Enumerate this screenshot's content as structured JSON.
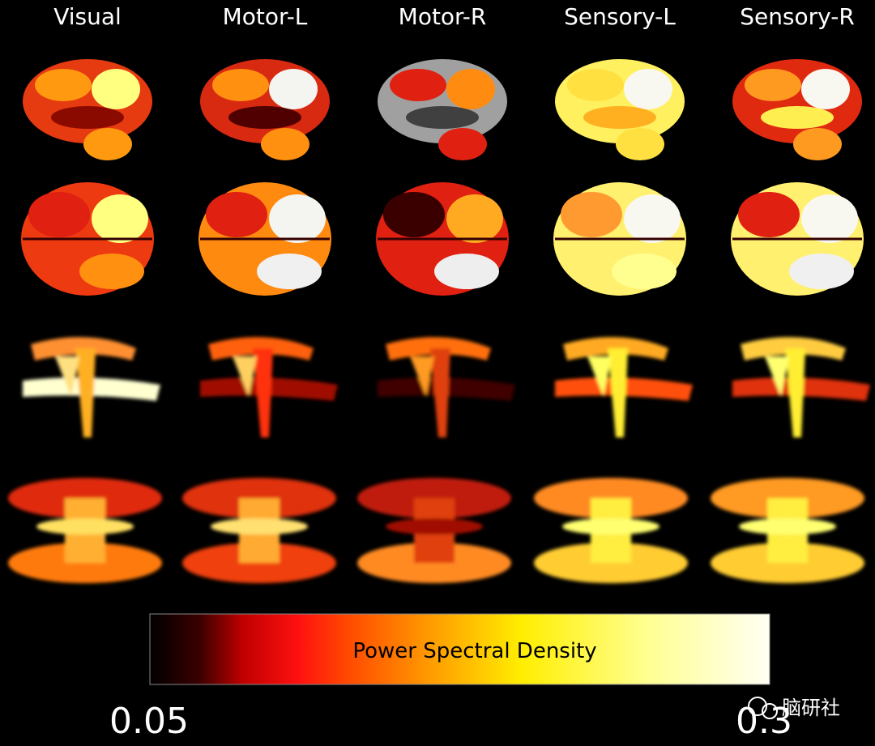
{
  "columns": [
    "Visual",
    "Motor-L",
    "Motor-R",
    "Sensory-L",
    "Sensory-R"
  ],
  "colorbar": {
    "label": "Power Spectral Density",
    "min": "0.05",
    "max": "0.3"
  },
  "watermark": "脑研社"
}
